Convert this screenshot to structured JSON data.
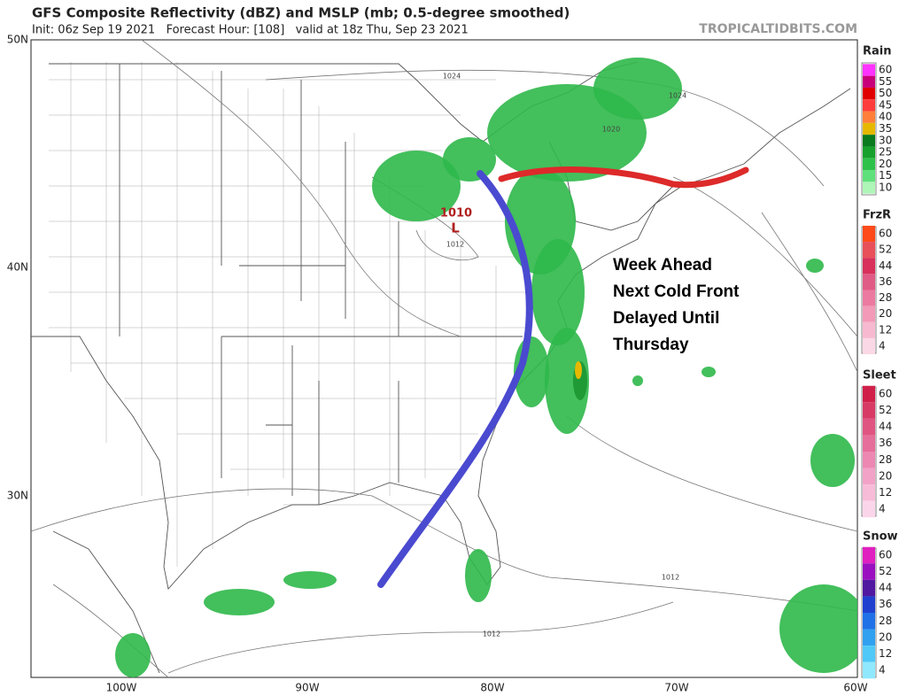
{
  "header": {
    "title": "GFS Composite Reflectivity (dBZ) and MSLP (mb; 0.5-degree smoothed)",
    "subtitle": "Init: 06z Sep 19 2021   Forecast Hour: [108]   valid at 18z Thu, Sep 23 2021",
    "site": "TROPICALTIDBITS.COM"
  },
  "map": {
    "lat_labels": [
      "50N",
      "40N",
      "30N"
    ],
    "lon_labels": [
      "100W",
      "90W",
      "80W",
      "70W",
      "60W"
    ],
    "isobar_labels": [
      "1024",
      "1020",
      "1024",
      "1010",
      "L",
      "1012",
      "1012",
      "1012"
    ],
    "annotation": [
      "Week Ahead",
      "Next Cold Front",
      "Delayed Until",
      "Thursday"
    ]
  },
  "legends": [
    {
      "title": "Rain",
      "labels": [
        "60",
        "55",
        "50",
        "45",
        "40",
        "35",
        "30",
        "25",
        "20",
        "15",
        "10"
      ],
      "colors": [
        "#ff33ff",
        "#c8007a",
        "#e00000",
        "#ff3c3c",
        "#ff7f3a",
        "#e6b800",
        "#0a7a1e",
        "#17a02c",
        "#2ec14a",
        "#5ee07a",
        "#aef5b8"
      ]
    },
    {
      "title": "FrzR",
      "labels": [
        "60",
        "52",
        "44",
        "36",
        "28",
        "20",
        "12",
        "4"
      ],
      "colors": [
        "#ff4a1a",
        "#e8505a",
        "#d8305a",
        "#e05b85",
        "#ec7aa0",
        "#f29ab8",
        "#f7b9cf",
        "#fbd8e5"
      ]
    },
    {
      "title": "Sleet",
      "labels": [
        "60",
        "52",
        "44",
        "36",
        "28",
        "20",
        "12",
        "4"
      ],
      "colors": [
        "#d0204a",
        "#d83a66",
        "#e05482",
        "#e66e9a",
        "#ec88b2",
        "#f2a2c6",
        "#f7bcd8",
        "#fbd6ea"
      ]
    },
    {
      "title": "Snow",
      "labels": [
        "60",
        "52",
        "44",
        "36",
        "28",
        "20",
        "12",
        "4"
      ],
      "colors": [
        "#e020c0",
        "#9a10c0",
        "#5018a0",
        "#2040d0",
        "#2070e8",
        "#30a0f0",
        "#50c8f8",
        "#90e8ff"
      ]
    }
  ]
}
